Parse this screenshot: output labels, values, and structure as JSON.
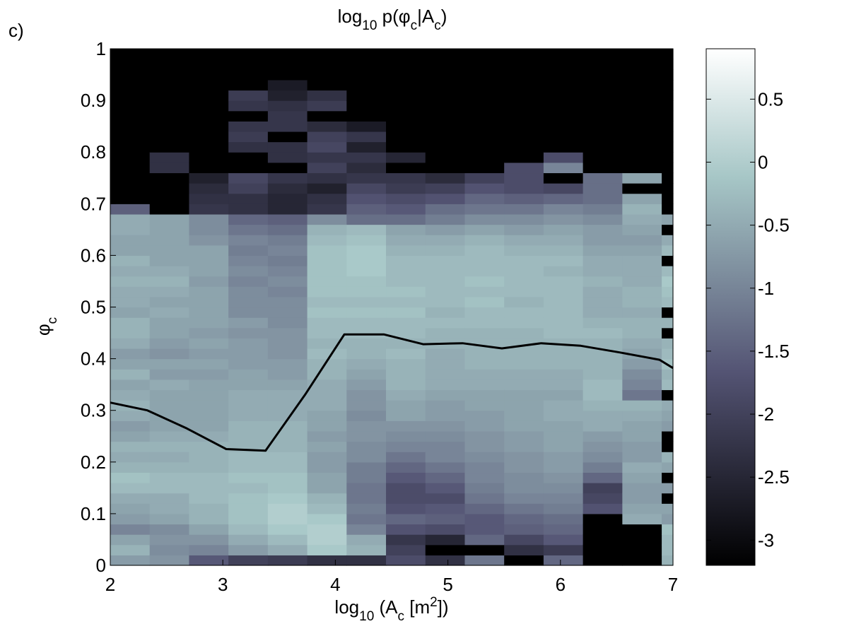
{
  "panel_label": "c)",
  "chart_data": {
    "type": "heatmap",
    "title_parts": {
      "a": "log",
      "b": "10",
      "c": " p(",
      "d": "φ",
      "e": "c",
      "f": "|A",
      "g": "c",
      "h": ")"
    },
    "xlabel_parts": {
      "a": "log",
      "b": "10",
      "c": " (A",
      "d": "c",
      "e": " [m",
      "f": "2",
      "g": "])"
    },
    "ylabel_parts": {
      "a": "φ",
      "b": "c"
    },
    "xlim": [
      2,
      7
    ],
    "ylim": [
      0,
      1
    ],
    "xticks": [
      "2",
      "3",
      "4",
      "5",
      "6",
      "7"
    ],
    "yticks": [
      "0",
      "0.1",
      "0.2",
      "0.3",
      "0.4",
      "0.5",
      "0.6",
      "0.7",
      "0.8",
      "0.9",
      "1"
    ],
    "x_bin_edges": [
      2,
      2.35,
      2.7,
      3.05,
      3.4,
      3.75,
      4.1,
      4.45,
      4.8,
      5.15,
      5.5,
      5.85,
      6.2,
      6.55,
      6.9,
      7.0
    ],
    "y_bin_width": 0.02,
    "colorbar": {
      "clim": [
        -3.2,
        0.9
      ],
      "ticks": [
        "0.5",
        "0",
        "-0.5",
        "-1",
        "-1.5",
        "-2",
        "-2.5",
        "-3"
      ],
      "colormap": "bone"
    },
    "columns_log10_density_by_y_bin": [
      [
        -0.7,
        -0.4,
        -0.6,
        -1.0,
        -0.7,
        -0.6,
        -0.5,
        -0.3,
        -0.2,
        -0.4,
        -0.5,
        -0.4,
        -0.6,
        -0.7,
        -0.5,
        -0.4,
        -0.5,
        -0.6,
        -0.4,
        -0.6,
        -0.7,
        -0.5,
        -0.4,
        -0.4,
        -0.6,
        -0.5,
        -0.5,
        -0.4,
        -0.5,
        -0.4,
        -0.6,
        -0.6,
        -0.5,
        -0.5,
        -1.5,
        -3.2,
        -3.2,
        -3.2,
        -3.2,
        -3.2,
        -3.2,
        -3.2,
        -3.2,
        -3.2,
        -3.2,
        -3.2,
        -3.2,
        -3.2,
        -3.2,
        -3.2
      ],
      [
        -0.8,
        -0.9,
        -0.8,
        -0.9,
        -0.6,
        -0.5,
        -0.5,
        -0.3,
        -0.3,
        -0.4,
        -0.5,
        -0.4,
        -0.5,
        -0.6,
        -0.6,
        -0.6,
        -0.6,
        -0.5,
        -0.7,
        -0.6,
        -0.8,
        -0.7,
        -0.6,
        -0.6,
        -0.5,
        -0.6,
        -0.5,
        -0.4,
        -0.5,
        -0.6,
        -0.6,
        -0.6,
        -0.6,
        -0.6,
        -3.2,
        -3.2,
        -3.2,
        -3.2,
        -2.3,
        -2.3,
        -3.2,
        -3.2,
        -3.2,
        -3.2,
        -3.2,
        -3.2,
        -3.2,
        -3.2,
        -3.2,
        -3.2
      ],
      [
        -1.6,
        -1.0,
        -0.8,
        -0.6,
        -0.4,
        -0.4,
        -0.3,
        -0.3,
        -0.3,
        -0.4,
        -0.4,
        -0.4,
        -0.5,
        -0.6,
        -0.6,
        -0.6,
        -0.6,
        -0.6,
        -0.7,
        -0.6,
        -0.7,
        -0.6,
        -0.7,
        -0.6,
        -0.6,
        -0.6,
        -0.6,
        -0.7,
        -0.6,
        -0.6,
        -0.6,
        -0.8,
        -0.9,
        -0.9,
        -2.2,
        -2.3,
        -2.4,
        -2.6,
        -3.2,
        -3.2,
        -3.2,
        -3.2,
        -3.2,
        -3.2,
        -3.2,
        -3.2,
        -3.2,
        -3.2,
        -3.2,
        -3.2
      ],
      [
        -2.0,
        -0.7,
        -0.5,
        -0.3,
        -0.2,
        -0.2,
        -0.2,
        -0.3,
        -0.2,
        -0.3,
        -0.3,
        -0.4,
        -0.4,
        -0.4,
        -0.5,
        -0.5,
        -0.5,
        -0.6,
        -0.6,
        -0.7,
        -0.7,
        -0.7,
        -0.8,
        -0.7,
        -0.9,
        -0.9,
        -0.9,
        -1.0,
        -0.9,
        -1.0,
        -1.1,
        -1.0,
        -1.2,
        -1.4,
        -2.3,
        -2.3,
        -2.0,
        -1.9,
        -3.2,
        -3.2,
        -2.3,
        -2.1,
        -2.2,
        -3.2,
        -2.2,
        -2.1,
        -3.2,
        -3.2,
        -3.2,
        -3.2
      ],
      [
        -2.1,
        -0.5,
        -0.3,
        -0.1,
        0.0,
        0.0,
        -0.1,
        -0.2,
        -0.2,
        -0.3,
        -0.3,
        -0.4,
        -0.4,
        -0.4,
        -0.5,
        -0.5,
        -0.5,
        -0.6,
        -0.7,
        -0.7,
        -0.8,
        -0.8,
        -0.8,
        -0.9,
        -0.9,
        -0.9,
        -1.0,
        -0.9,
        -1.0,
        -1.1,
        -1.0,
        -1.1,
        -1.3,
        -1.5,
        -2.5,
        -2.5,
        -2.4,
        -2.2,
        -3.2,
        -2.3,
        -2.3,
        -3.2,
        -2.2,
        -2.2,
        -2.3,
        -2.6,
        -2.7,
        -3.2,
        -3.2,
        -3.2
      ],
      [
        -2.3,
        -0.1,
        0.0,
        0.0,
        -0.1,
        -0.3,
        -0.4,
        -0.6,
        -0.6,
        -0.7,
        -0.7,
        -0.6,
        -0.7,
        -0.6,
        -0.6,
        -0.5,
        -0.5,
        -0.5,
        -0.4,
        -0.4,
        -0.3,
        -0.4,
        -0.3,
        -0.3,
        -0.2,
        -0.3,
        -0.2,
        -0.2,
        -0.2,
        -0.2,
        -0.2,
        -0.3,
        -0.4,
        -0.9,
        -2.2,
        -2.3,
        -2.6,
        -2.3,
        -2.0,
        -2.2,
        -1.9,
        -2.0,
        -2.4,
        -3.2,
        -2.1,
        -2.3,
        -3.2,
        -3.2,
        -3.2,
        -3.2
      ],
      [
        -2.3,
        -0.4,
        -0.5,
        -1.0,
        -1.2,
        -1.1,
        -1.2,
        -1.2,
        -1.1,
        -1.1,
        -0.9,
        -0.9,
        -0.8,
        -0.8,
        -0.9,
        -0.8,
        -0.8,
        -0.7,
        -0.6,
        -0.5,
        -0.4,
        -0.4,
        -0.3,
        -0.3,
        -0.2,
        -0.3,
        -0.2,
        -0.2,
        -0.1,
        -0.1,
        -0.1,
        -0.2,
        -0.3,
        -1.3,
        -1.5,
        -1.7,
        -1.9,
        -2.2,
        -2.4,
        -2.2,
        -2.6,
        -2.2,
        -2.7,
        -3.2,
        -3.2,
        -3.2,
        -3.2,
        -3.2,
        -3.2,
        -3.2
      ],
      [
        -1.8,
        -2.0,
        -2.2,
        -1.7,
        -1.4,
        -1.7,
        -1.8,
        -1.8,
        -1.6,
        -1.4,
        -1.2,
        -1.0,
        -0.9,
        -0.8,
        -0.6,
        -0.6,
        -0.5,
        -0.4,
        -0.4,
        -0.4,
        -0.3,
        -0.4,
        -0.3,
        -0.3,
        -0.2,
        -0.3,
        -0.2,
        -0.3,
        -0.3,
        -0.3,
        -0.4,
        -0.5,
        -0.6,
        -1.3,
        -1.6,
        -1.8,
        -2.1,
        -2.2,
        -3.2,
        -2.5,
        -3.2,
        -3.2,
        -3.2,
        -3.2,
        -3.2,
        -3.2,
        -3.2,
        -3.2,
        -3.2,
        -3.2
      ],
      [
        -2.3,
        -3.2,
        -2.5,
        -1.8,
        -1.5,
        -1.6,
        -1.8,
        -1.6,
        -1.4,
        -1.2,
        -1.0,
        -1.0,
        -0.9,
        -0.8,
        -0.7,
        -0.7,
        -0.6,
        -0.5,
        -0.5,
        -0.5,
        -0.5,
        -0.4,
        -0.4,
        -0.3,
        -0.4,
        -0.3,
        -0.3,
        -0.3,
        -0.3,
        -0.3,
        -0.4,
        -0.5,
        -0.7,
        -1.1,
        -1.3,
        -1.7,
        -2.0,
        -2.4,
        -3.2,
        -3.2,
        -3.2,
        -3.2,
        -3.2,
        -3.2,
        -3.2,
        -3.2,
        -3.2,
        -3.2,
        -3.2,
        -3.2
      ],
      [
        -1.2,
        -3.2,
        -1.4,
        -1.6,
        -1.6,
        -1.4,
        -1.2,
        -1.1,
        -1.0,
        -1.0,
        -0.9,
        -0.8,
        -0.8,
        -0.7,
        -0.7,
        -0.6,
        -0.6,
        -0.5,
        -0.5,
        -0.4,
        -0.4,
        -0.4,
        -0.4,
        -0.3,
        -0.3,
        -0.2,
        -0.3,
        -0.2,
        -0.3,
        -0.3,
        -0.3,
        -0.4,
        -0.6,
        -0.9,
        -1.2,
        -1.4,
        -1.7,
        -2.0,
        -3.2,
        -3.2,
        -3.2,
        -3.2,
        -3.2,
        -3.2,
        -3.2,
        -3.2,
        -3.2,
        -3.2,
        -3.2,
        -3.2
      ],
      [
        -3.2,
        -2.3,
        -1.9,
        -1.5,
        -1.4,
        -1.2,
        -1.0,
        -0.9,
        -0.9,
        -0.8,
        -0.8,
        -0.7,
        -0.7,
        -0.6,
        -0.6,
        -0.6,
        -0.6,
        -0.5,
        -0.5,
        -0.4,
        -0.4,
        -0.4,
        -0.4,
        -0.3,
        -0.3,
        -0.4,
        -0.3,
        -0.3,
        -0.3,
        -0.3,
        -0.4,
        -0.5,
        -0.7,
        -0.9,
        -1.2,
        -1.5,
        -1.8,
        -1.8,
        -1.8,
        -3.2,
        -3.2,
        -3.2,
        -3.2,
        -3.2,
        -3.2,
        -3.2,
        -3.2,
        -3.2,
        -3.2,
        -3.2
      ],
      [
        -1.4,
        -2.1,
        -1.6,
        -1.4,
        -1.3,
        -1.1,
        -1.0,
        -0.9,
        -0.8,
        -0.7,
        -0.7,
        -0.6,
        -0.6,
        -0.6,
        -0.5,
        -0.5,
        -0.6,
        -0.5,
        -0.5,
        -0.4,
        -0.4,
        -0.4,
        -0.3,
        -0.3,
        -0.3,
        -0.3,
        -0.3,
        -0.3,
        -0.4,
        -0.3,
        -0.4,
        -0.5,
        -0.6,
        -0.8,
        -1.0,
        -1.4,
        -1.9,
        -3.2,
        -1.0,
        -1.8,
        -3.2,
        -3.2,
        -3.2,
        -3.2,
        -3.2,
        -3.2,
        -3.2,
        -3.2,
        -3.2,
        -3.2
      ],
      [
        -3.2,
        -3.2,
        -3.2,
        -3.2,
        -3.2,
        -1.7,
        -1.9,
        -2.0,
        -1.4,
        -1.1,
        -0.9,
        -0.8,
        -0.7,
        -0.5,
        -0.5,
        -0.4,
        -0.3,
        -0.3,
        -0.4,
        -0.4,
        -0.4,
        -0.4,
        -0.3,
        -0.4,
        -0.5,
        -0.5,
        -0.5,
        -0.4,
        -0.5,
        -0.5,
        -0.6,
        -0.7,
        -0.7,
        -0.9,
        -1.1,
        -1.3,
        -1.3,
        -1.3,
        -3.2,
        -3.2,
        -3.2,
        -3.2,
        -3.2,
        -3.2,
        -3.2,
        -3.2,
        -3.2,
        -3.2,
        -3.2,
        -3.2
      ],
      [
        -3.2,
        -3.2,
        -3.2,
        -3.2,
        -0.5,
        -0.6,
        -0.7,
        -0.7,
        -0.6,
        -0.5,
        -0.7,
        -0.7,
        -0.6,
        -0.6,
        -0.5,
        -0.4,
        -1.2,
        -1.0,
        -0.9,
        -0.7,
        -0.6,
        -0.5,
        -0.4,
        -0.4,
        -0.5,
        -0.4,
        -0.4,
        -0.5,
        -0.5,
        -0.5,
        -0.6,
        -0.7,
        -0.6,
        -0.5,
        -0.4,
        -0.6,
        -3.2,
        -0.6,
        -3.2,
        -3.2,
        -3.2,
        -3.2,
        -3.2,
        -3.2,
        -3.2,
        -3.2,
        -3.2,
        -3.2,
        -3.2,
        -3.2
      ],
      [
        -0.4,
        -0.3,
        -0.3,
        -0.2,
        -0.7,
        -0.6,
        -3.2,
        -0.7,
        -3.2,
        -0.6,
        -0.4,
        -3.2,
        -3.2,
        -0.7,
        -0.6,
        -0.5,
        -3.2,
        -0.3,
        -0.4,
        -0.2,
        -0.3,
        -0.4,
        -3.2,
        -0.4,
        -3.2,
        -0.3,
        -0.2,
        -0.1,
        -0.3,
        -3.2,
        -0.3,
        -0.5,
        -3.2,
        -0.6,
        -3.2,
        -3.2,
        -3.2,
        -3.2,
        -3.2,
        -3.2,
        -3.2,
        -3.2,
        -3.2,
        -3.2,
        -3.2,
        -3.2,
        -3.2,
        -3.2,
        -3.2,
        -3.2
      ]
    ],
    "median_line": {
      "x": [
        2.0,
        2.33,
        2.68,
        3.03,
        3.38,
        3.73,
        4.08,
        4.43,
        4.78,
        5.13,
        5.48,
        5.83,
        6.18,
        6.53,
        6.88,
        7.0
      ],
      "y": [
        0.315,
        0.3,
        0.265,
        0.225,
        0.222,
        0.33,
        0.447,
        0.447,
        0.428,
        0.43,
        0.42,
        0.43,
        0.425,
        0.412,
        0.398,
        0.382
      ]
    }
  }
}
